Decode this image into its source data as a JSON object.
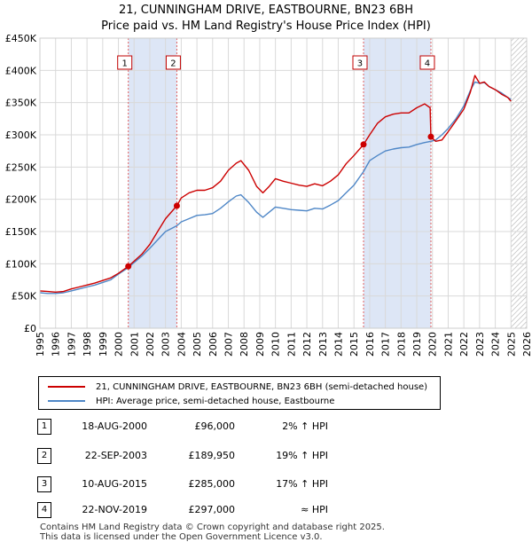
{
  "chart_data": {
    "type": "line",
    "title": "21, CUNNINGHAM DRIVE, EASTBOURNE, BN23 6BH",
    "subtitle": "Price paid vs. HM Land Registry's House Price Index (HPI)",
    "xlabel": "",
    "ylabel": "",
    "xlim": [
      1995,
      2026
    ],
    "ylim": [
      0,
      450000
    ],
    "x_ticks": [
      1995,
      1996,
      1997,
      1998,
      1999,
      2000,
      2001,
      2002,
      2003,
      2004,
      2005,
      2006,
      2007,
      2008,
      2009,
      2010,
      2011,
      2012,
      2013,
      2014,
      2015,
      2016,
      2017,
      2018,
      2019,
      2020,
      2021,
      2022,
      2023,
      2024,
      2025,
      2026
    ],
    "y_ticks": [
      {
        "value": 0,
        "label": "£0"
      },
      {
        "value": 50000,
        "label": "£50K"
      },
      {
        "value": 100000,
        "label": "£100K"
      },
      {
        "value": 150000,
        "label": "£150K"
      },
      {
        "value": 200000,
        "label": "£200K"
      },
      {
        "value": 250000,
        "label": "£250K"
      },
      {
        "value": 300000,
        "label": "£300K"
      },
      {
        "value": 350000,
        "label": "£350K"
      },
      {
        "value": 400000,
        "label": "£400K"
      },
      {
        "value": 450000,
        "label": "£450K"
      }
    ],
    "grid": true,
    "shaded_periods": [
      [
        2000.63,
        2003.72
      ],
      [
        2015.61,
        2019.9
      ]
    ],
    "projection_start": 2025.0,
    "series": [
      {
        "name": "21, CUNNINGHAM DRIVE, EASTBOURNE, BN23 6BH (semi-detached house)",
        "color": "#cc0000",
        "x": [
          1995.0,
          1995.5,
          1996.0,
          1996.5,
          1997.0,
          1997.5,
          1998.0,
          1998.5,
          1999.0,
          1999.5,
          2000.0,
          2000.63,
          2001.0,
          2001.5,
          2002.0,
          2002.5,
          2003.0,
          2003.72,
          2004.0,
          2004.5,
          2005.0,
          2005.5,
          2006.0,
          2006.5,
          2007.0,
          2007.5,
          2007.8,
          2008.3,
          2008.8,
          2009.2,
          2009.6,
          2010.0,
          2010.5,
          2011.0,
          2011.5,
          2012.0,
          2012.5,
          2013.0,
          2013.5,
          2014.0,
          2014.5,
          2015.0,
          2015.61,
          2016.0,
          2016.5,
          2017.0,
          2017.5,
          2018.0,
          2018.5,
          2019.0,
          2019.5,
          2019.85,
          2019.9,
          2020.2,
          2020.6,
          2021.0,
          2021.5,
          2022.0,
          2022.4,
          2022.7,
          2023.0,
          2023.3,
          2023.6,
          2024.0,
          2024.4,
          2024.8,
          2025.0
        ],
        "values": [
          58000,
          57000,
          56000,
          57000,
          61000,
          64000,
          67000,
          70000,
          74000,
          78000,
          85000,
          96000,
          104000,
          115000,
          130000,
          150000,
          170000,
          189950,
          202000,
          210000,
          214000,
          214000,
          218000,
          228000,
          245000,
          256000,
          260000,
          245000,
          220000,
          210000,
          220000,
          232000,
          228000,
          225000,
          222000,
          220000,
          224000,
          221000,
          228000,
          238000,
          255000,
          268000,
          285000,
          300000,
          318000,
          328000,
          332000,
          334000,
          334000,
          342000,
          348000,
          342000,
          297000,
          290000,
          292000,
          305000,
          322000,
          340000,
          365000,
          392000,
          380000,
          382000,
          375000,
          370000,
          363000,
          358000,
          352000
        ]
      },
      {
        "name": "HPI: Average price, semi-detached house, Eastbourne",
        "color": "#4f87c7",
        "x": [
          1995.0,
          1995.5,
          1996.0,
          1996.5,
          1997.0,
          1997.5,
          1998.0,
          1998.5,
          1999.0,
          1999.5,
          2000.0,
          2000.63,
          2001.0,
          2001.5,
          2002.0,
          2002.5,
          2003.0,
          2003.72,
          2004.0,
          2004.5,
          2005.0,
          2005.5,
          2006.0,
          2006.5,
          2007.0,
          2007.5,
          2007.8,
          2008.3,
          2008.8,
          2009.2,
          2009.6,
          2010.0,
          2010.5,
          2011.0,
          2011.5,
          2012.0,
          2012.5,
          2013.0,
          2013.5,
          2014.0,
          2014.5,
          2015.0,
          2015.61,
          2016.0,
          2016.5,
          2017.0,
          2017.5,
          2018.0,
          2018.5,
          2019.0,
          2019.5,
          2019.9,
          2020.2,
          2020.6,
          2021.0,
          2021.5,
          2022.0,
          2022.4,
          2022.7,
          2023.0,
          2023.3,
          2023.6,
          2024.0,
          2024.4,
          2024.8,
          2025.0
        ],
        "values": [
          55000,
          54000,
          54000,
          55000,
          58000,
          61000,
          64000,
          67000,
          71000,
          75000,
          84000,
          94000,
          102000,
          112000,
          124000,
          137000,
          150000,
          159000,
          165000,
          170000,
          175000,
          176000,
          178000,
          186000,
          196000,
          205000,
          207000,
          195000,
          180000,
          172000,
          180000,
          188000,
          186000,
          184000,
          183000,
          182000,
          186000,
          185000,
          191000,
          198000,
          210000,
          222000,
          243000,
          260000,
          268000,
          275000,
          278000,
          280000,
          281000,
          285000,
          288000,
          290000,
          292000,
          300000,
          310000,
          325000,
          345000,
          368000,
          382000,
          380000,
          381000,
          375000,
          370000,
          365000,
          358000,
          355000
        ]
      }
    ],
    "transactions": [
      {
        "label": "1",
        "date": "18-AUG-2000",
        "price": "£96,000",
        "hpi": "2% ↑ HPI",
        "x": 2000.63,
        "value": 96000
      },
      {
        "label": "2",
        "date": "22-SEP-2003",
        "price": "£189,950",
        "hpi": "19% ↑ HPI",
        "x": 2003.72,
        "value": 189950
      },
      {
        "label": "3",
        "date": "10-AUG-2015",
        "price": "£285,000",
        "hpi": "17% ↑ HPI",
        "x": 2015.61,
        "value": 285000
      },
      {
        "label": "4",
        "date": "22-NOV-2019",
        "price": "£297,000",
        "hpi": "≈ HPI",
        "x": 2019.9,
        "value": 297000
      }
    ],
    "legend": [
      "21, CUNNINGHAM DRIVE, EASTBOURNE, BN23 6BH (semi-detached house)",
      "HPI: Average price, semi-detached house, Eastbourne"
    ]
  },
  "footer": {
    "line1": "Contains HM Land Registry data © Crown copyright and database right 2025.",
    "line2": "This data is licensed under the Open Government Licence v3.0."
  }
}
